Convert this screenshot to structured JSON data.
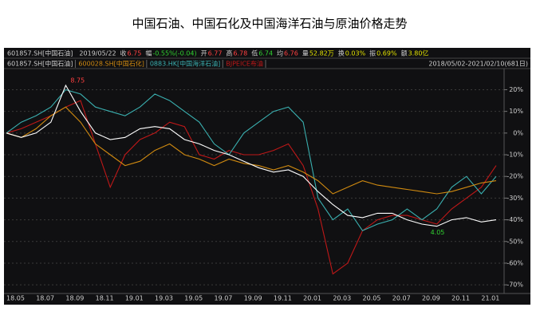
{
  "chart_data": {
    "type": "line",
    "title": "中国石油、中国石化及中国海洋石油与原油价格走势",
    "info": [
      {
        "label": "601857.SH[中国石油]",
        "value": "2019/05/22",
        "color": "#cfcfcf"
      },
      {
        "label": "收",
        "value": "6.75",
        "color": "#ff4040"
      },
      {
        "label": "幅",
        "value": "-0.55%(-0.04)",
        "color": "#30d030"
      },
      {
        "label": "开",
        "value": "6.77",
        "color": "#ff4040"
      },
      {
        "label": "高",
        "value": "6.78",
        "color": "#ff4040"
      },
      {
        "label": "低",
        "value": "6.74",
        "color": "#30d030"
      },
      {
        "label": "均",
        "value": "6.76",
        "color": "#ff4040"
      },
      {
        "label": "量",
        "value": "52.82万",
        "color": "#e0e000"
      },
      {
        "label": "换",
        "value": "0.03%",
        "color": "#e0e000"
      },
      {
        "label": "振",
        "value": "0.69%",
        "color": "#e0e000"
      },
      {
        "label": "额",
        "value": "3.80亿",
        "color": "#e0e000"
      }
    ],
    "period": "2018/05/02-2021/02/10(681日)",
    "categories": [
      "18.05",
      null,
      "18.07",
      null,
      "18.09",
      null,
      "18.11",
      null,
      "19.01",
      null,
      "19.03",
      null,
      "19.05",
      null,
      "19.07",
      null,
      "19.09",
      null,
      "19.11",
      null,
      "20.01",
      null,
      "20.03",
      null,
      "20.05",
      null,
      "20.07",
      null,
      "20.09",
      null,
      "20.11",
      null,
      "21.01",
      null
    ],
    "series": [
      {
        "name": "601857.SH[中国石油]",
        "color": "#ffffff",
        "values": [
          0,
          -2,
          0,
          5,
          22,
          10,
          0,
          -3,
          -2,
          2,
          3,
          2,
          -3,
          -5,
          -8,
          -10,
          -13,
          -16,
          -18,
          -17,
          -20,
          -27,
          -33,
          -38,
          -39,
          -37,
          -37,
          -40,
          -42,
          -43,
          -40,
          -39,
          -41,
          -40
        ]
      },
      {
        "name": "600028.SH[中国石化]",
        "color": "#d08a10",
        "values": [
          0,
          -2,
          2,
          8,
          12,
          5,
          -5,
          -10,
          -15,
          -13,
          -8,
          -5,
          -10,
          -12,
          -15,
          -12,
          -14,
          -15,
          -17,
          -15,
          -18,
          -22,
          -28,
          -25,
          -22,
          -24,
          -25,
          -26,
          -27,
          -28,
          -27,
          -25,
          -23,
          -22
        ]
      },
      {
        "name": "0883.HK[中国海洋石油]",
        "color": "#3ab0b0",
        "values": [
          0,
          5,
          8,
          12,
          20,
          18,
          12,
          10,
          8,
          12,
          18,
          15,
          10,
          5,
          -5,
          -10,
          0,
          5,
          10,
          12,
          5,
          -30,
          -40,
          -35,
          -45,
          -42,
          -40,
          -35,
          -40,
          -35,
          -25,
          -20,
          -28,
          -20
        ]
      },
      {
        "name": "BJPEICE布油",
        "color": "#c01818",
        "values": [
          0,
          2,
          5,
          8,
          12,
          15,
          -5,
          -25,
          -10,
          -3,
          0,
          5,
          3,
          -10,
          -12,
          -8,
          -10,
          -10,
          -8,
          -5,
          -15,
          -35,
          -65,
          -60,
          -45,
          -40,
          -38,
          -38,
          -40,
          -42,
          -35,
          -30,
          -25,
          -15
        ]
      }
    ],
    "annotations": [
      {
        "text": "8.75",
        "color": "#ff4040"
      },
      {
        "text": "4.05",
        "color": "#30d030"
      }
    ],
    "ylim": [
      -74,
      29
    ],
    "yticks": [
      {
        "value": 20,
        "label": "20%"
      },
      {
        "value": 10,
        "label": "10%"
      },
      {
        "value": 0,
        "label": "0%"
      },
      {
        "value": -10,
        "label": "-10%"
      },
      {
        "value": -20,
        "label": "-20%"
      },
      {
        "value": -30,
        "label": "-30%"
      },
      {
        "value": -40,
        "label": "-40%"
      },
      {
        "value": -50,
        "label": "-50%"
      },
      {
        "value": -60,
        "label": "-60%"
      },
      {
        "value": -70,
        "label": "-70%"
      }
    ],
    "grid": true
  }
}
